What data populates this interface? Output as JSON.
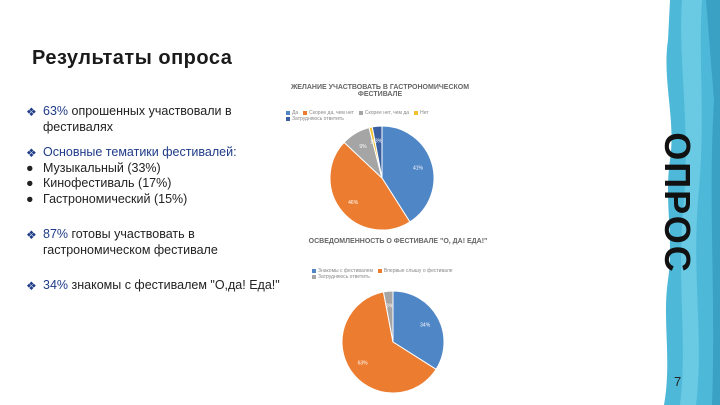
{
  "slide": {
    "title": "Результаты опроса",
    "side_label": "ОПРОС",
    "page_number": "7",
    "bullets": [
      {
        "highlight": "63%",
        "text": " опрошенных участвовали в фестивалях"
      },
      {
        "text": "Основные тематики фестивалей:",
        "items": [
          "Музыкальный (33%)",
          "Кинофестиваль (17%)",
          "Гастрономический (15%)"
        ]
      },
      {
        "highlight": "87%",
        "text": " готовы участвовать в гастрономическом фестивале"
      },
      {
        "highlight": "34%",
        "text": " знакомы с фестивалем \"О,да! Еда!\""
      }
    ]
  },
  "colors": {
    "blue": "#4f86c6",
    "orange": "#ec7c30",
    "gray": "#a5a5a5",
    "yellow": "#f2c12e",
    "dark": "#3a5fa0"
  },
  "chart_data": [
    {
      "type": "pie",
      "title": "ЖЕЛАНИЕ УЧАСТВОВАТЬ В ГАСТРОНОМИЧЕСКОМ ФЕСТИВАЛЕ",
      "categories": [
        "Да",
        "Скорее да, чем нет",
        "Скорее нет, чем да",
        "Нет",
        "Затрудняюсь ответить"
      ],
      "values": [
        41,
        46,
        9,
        1,
        3
      ],
      "labels": [
        "41%",
        "46%",
        "9%",
        "1%",
        "3%"
      ]
    },
    {
      "type": "pie",
      "title": "ОСВЕДОМЛЕННОСТЬ О ФЕСТИВАЛЕ \"О, ДА! ЕДА!\"",
      "categories": [
        "Знакомы с фестивалем",
        "Впервые слышу о фестивале",
        "Затрудняюсь ответить"
      ],
      "values": [
        34,
        63,
        3
      ],
      "labels": [
        "34%",
        "63%",
        "3%"
      ]
    }
  ]
}
